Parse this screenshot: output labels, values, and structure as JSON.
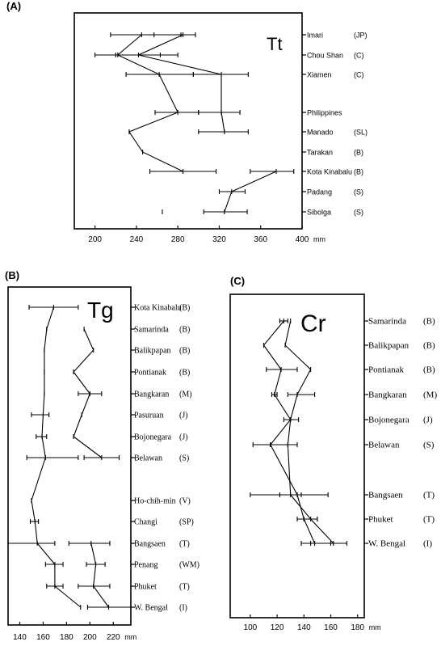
{
  "figure": {
    "panels": [
      "(A)",
      "(B)",
      "(C)"
    ]
  },
  "chart_data": [
    {
      "panel": "(A)",
      "type": "line",
      "tag": "Tt",
      "unit": "mm",
      "xlim": [
        180,
        400
      ],
      "xticks": [
        200,
        240,
        280,
        320,
        360,
        400
      ],
      "sites": [
        "Imari",
        "Chou Shan",
        "Xiamen",
        "Philippines",
        "Manado",
        "Tarakan",
        "Kota Kinabalu",
        "Padang",
        "Sibolga"
      ],
      "regions": [
        "(JP)",
        "(C)",
        "(C)",
        "",
        "(SL)",
        "(B)",
        "(B)",
        "(S)",
        "(S)"
      ],
      "series": [
        {
          "mean": [
            245,
            222,
            262,
            280,
            233,
            246,
            285,
            null,
            265
          ],
          "low": [
            215,
            200,
            230,
            258,
            null,
            null,
            253,
            null,
            null
          ],
          "high": [
            283,
            280,
            295,
            300,
            null,
            null,
            317,
            null,
            null
          ]
        },
        {
          "mean": [
            285,
            242,
            322,
            322,
            325,
            null,
            375,
            332,
            325
          ],
          "low": [
            257,
            220,
            295,
            300,
            300,
            null,
            350,
            320,
            305
          ],
          "high": [
            297,
            263,
            348,
            340,
            348,
            null,
            392,
            345,
            347
          ]
        }
      ]
    },
    {
      "panel": "(B)",
      "type": "line",
      "tag": "Tg",
      "unit": "mm",
      "xlim": [
        130,
        235
      ],
      "xticks": [
        140,
        160,
        180,
        200,
        220
      ],
      "sites": [
        "Kota Kinabalu",
        "Samarinda",
        "Balikpapan",
        "Pontianak",
        "Bangkaran",
        "Pasuruan",
        "Bojonegara",
        "Belawan",
        "Ho-chih-min",
        "Changi",
        "Bangsaen",
        "Penang",
        "Phuket",
        "W. Bengal"
      ],
      "regions": [
        "(B)",
        "(B)",
        "(B)",
        "(B)",
        "(M)",
        "(J)",
        "(J)",
        "(S)",
        "(V)",
        "(SP)",
        "(T)",
        "(WM)",
        "(T)",
        "(I)"
      ],
      "series": [
        {
          "mean": [
            169,
            163,
            161,
            161,
            161,
            160,
            159,
            162,
            150,
            153,
            155,
            170,
            170,
            192
          ],
          "low": [
            148,
            null,
            null,
            null,
            null,
            150,
            154,
            146,
            null,
            149,
            130,
            162,
            163,
            null
          ],
          "high": [
            190,
            null,
            null,
            null,
            null,
            165,
            163,
            190,
            null,
            156,
            170,
            177,
            177,
            null
          ]
        },
        {
          "mean": [
            null,
            195,
            203,
            186,
            200,
            193,
            186,
            210,
            null,
            null,
            201,
            205,
            203,
            216
          ],
          "low": [
            null,
            null,
            null,
            null,
            190,
            null,
            null,
            195,
            null,
            null,
            182,
            197,
            190,
            198
          ],
          "high": [
            null,
            null,
            null,
            null,
            210,
            null,
            null,
            225,
            null,
            null,
            217,
            213,
            217,
            235
          ]
        }
      ]
    },
    {
      "panel": "(C)",
      "type": "line",
      "tag": "Cr",
      "unit": "mm",
      "xlim": [
        85,
        185
      ],
      "xticks": [
        100,
        120,
        140,
        160,
        180
      ],
      "sites": [
        "Samarinda",
        "Balikpapan",
        "Pontianak",
        "Bangkaran",
        "Bojonegara",
        "Belawan",
        "Bangsaen",
        "Phuket",
        "W. Bengal"
      ],
      "regions": [
        "(B)",
        "(B)",
        "(B)",
        "(M)",
        "(J)",
        "(S)",
        "(T)",
        "(T)",
        "(I)"
      ],
      "series": [
        {
          "mean": [
            125,
            110,
            123,
            118,
            130,
            115,
            135,
            140,
            148
          ],
          "low": [
            122,
            null,
            112,
            116,
            null,
            102,
            100,
            135,
            138
          ],
          "high": [
            128,
            null,
            135,
            120,
            null,
            128,
            158,
            150,
            160
          ]
        },
        {
          "mean": [
            130,
            126,
            145,
            135,
            130,
            128,
            130,
            145,
            162
          ],
          "low": [
            null,
            null,
            null,
            128,
            125,
            115,
            122,
            140,
            145
          ],
          "high": [
            null,
            null,
            null,
            148,
            136,
            135,
            138,
            150,
            172
          ]
        }
      ]
    }
  ]
}
